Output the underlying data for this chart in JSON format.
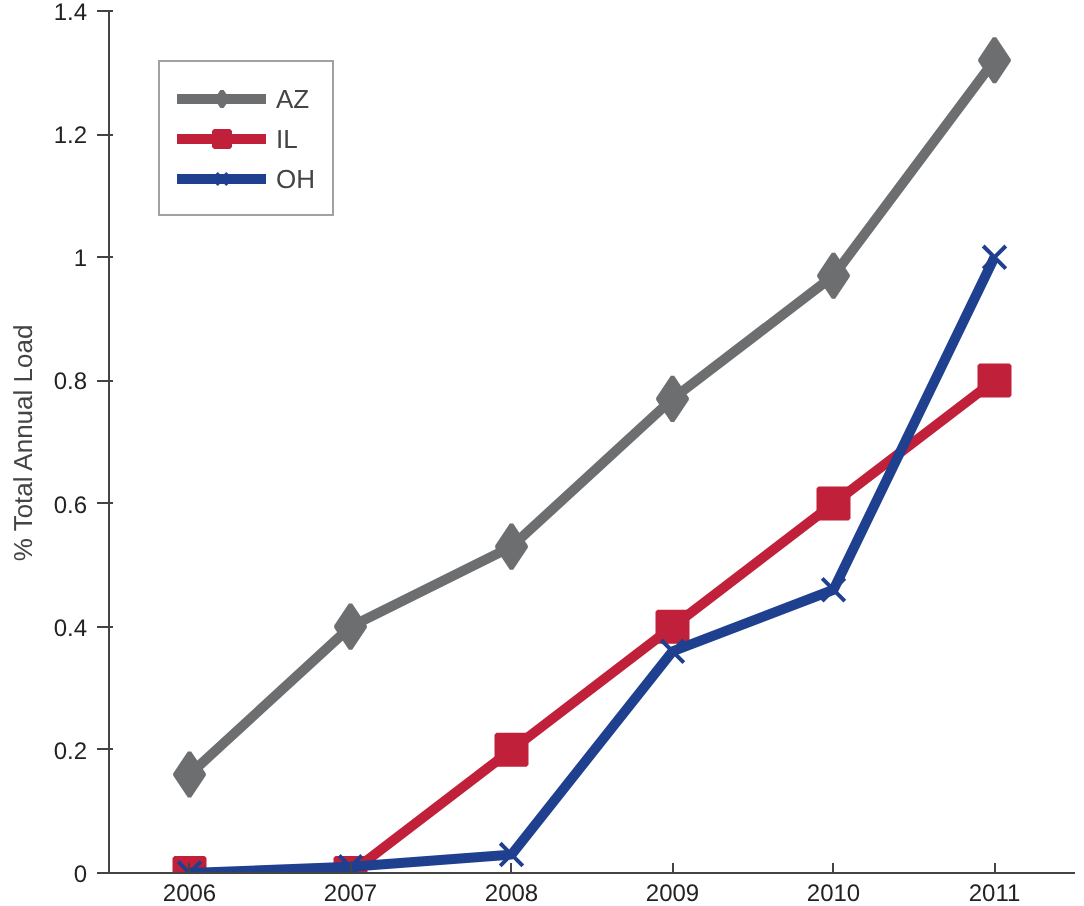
{
  "chart_data": {
    "type": "line",
    "ylabel": "% Total Annual Load",
    "categories": [
      "2006",
      "2007",
      "2008",
      "2009",
      "2010",
      "2011"
    ],
    "ylim": [
      0,
      1.4
    ],
    "yticks": [
      0,
      0.2,
      0.4,
      0.6,
      0.8,
      1,
      1.2,
      1.4
    ],
    "grid": false,
    "legend": "top left",
    "series": [
      {
        "name": "AZ",
        "color": "#6d6e70",
        "marker": "diamond",
        "values": [
          0.16,
          0.4,
          0.53,
          0.77,
          0.97,
          1.32
        ]
      },
      {
        "name": "IL",
        "color": "#c1203a",
        "marker": "square",
        "values": [
          0,
          0,
          0.2,
          0.4,
          0.6,
          0.8
        ]
      },
      {
        "name": "OH",
        "color": "#1f3f8f",
        "marker": "cross",
        "values": [
          0,
          0.01,
          0.03,
          0.36,
          0.46,
          1.0
        ]
      }
    ]
  }
}
